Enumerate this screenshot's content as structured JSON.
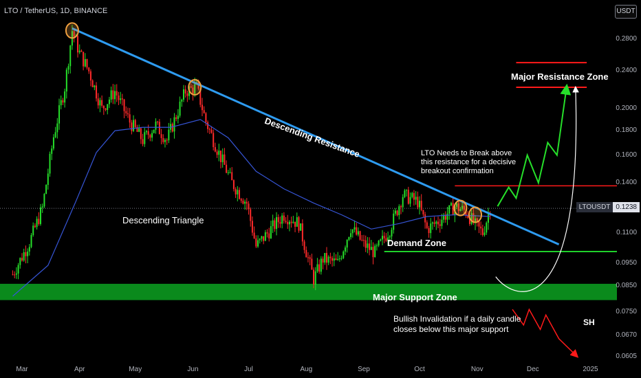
{
  "header": {
    "symbol_line": "LTO / TetherUS, 1D, BINANCE"
  },
  "quote_currency": "USDT",
  "ticker_tag": {
    "symbol": "LTOUSDT",
    "price": "0.1238"
  },
  "colors": {
    "bg": "#000000",
    "bull": "#26e02a",
    "bear": "#ff2a2a",
    "resistance_line": "#2e9bf0",
    "ma_line": "#3655d6",
    "support_zone": "#0a8a1c",
    "demand_line": "#1fd12b",
    "red_level": "#ff1a1a",
    "highlight_circle": "#f0a040"
  },
  "chart_data": {
    "type": "candlestick",
    "title": "LTO / TetherUS, 1D, BINANCE",
    "y_scale": "log",
    "ylim": [
      0.0605,
      0.33
    ],
    "y_ticks": [
      "0.2800",
      "0.2400",
      "0.2000",
      "0.1800",
      "0.1600",
      "0.1400",
      "0.1100",
      "0.0950",
      "0.0850",
      "0.0750",
      "0.0670",
      "0.0605"
    ],
    "x_ticks": [
      "Mar",
      "Apr",
      "May",
      "Jun",
      "Jul",
      "Aug",
      "Sep",
      "Oct",
      "Nov",
      "Dec",
      "2025"
    ],
    "last_price": 0.1238,
    "key_points": [
      {
        "date": "2024-02-25",
        "price": 0.09
      },
      {
        "date": "2024-03-05",
        "price": 0.105
      },
      {
        "date": "2024-03-12",
        "price": 0.124
      },
      {
        "date": "2024-03-18",
        "price": 0.175
      },
      {
        "date": "2024-03-24",
        "price": 0.222
      },
      {
        "date": "2024-03-28",
        "price": 0.292
      },
      {
        "date": "2024-04-01",
        "price": 0.262
      },
      {
        "date": "2024-04-06",
        "price": 0.24
      },
      {
        "date": "2024-04-13",
        "price": 0.2
      },
      {
        "date": "2024-04-20",
        "price": 0.218
      },
      {
        "date": "2024-04-28",
        "price": 0.188
      },
      {
        "date": "2024-05-05",
        "price": 0.172
      },
      {
        "date": "2024-05-12",
        "price": 0.185
      },
      {
        "date": "2024-05-18",
        "price": 0.172
      },
      {
        "date": "2024-05-28",
        "price": 0.218
      },
      {
        "date": "2024-06-03",
        "price": 0.222
      },
      {
        "date": "2024-06-08",
        "price": 0.188
      },
      {
        "date": "2024-06-14",
        "price": 0.165
      },
      {
        "date": "2024-06-22",
        "price": 0.14
      },
      {
        "date": "2024-06-30",
        "price": 0.127
      },
      {
        "date": "2024-07-05",
        "price": 0.103
      },
      {
        "date": "2024-07-13",
        "price": 0.112
      },
      {
        "date": "2024-07-20",
        "price": 0.12
      },
      {
        "date": "2024-07-28",
        "price": 0.115
      },
      {
        "date": "2024-08-05",
        "price": 0.088
      },
      {
        "date": "2024-08-10",
        "price": 0.097
      },
      {
        "date": "2024-08-18",
        "price": 0.095
      },
      {
        "date": "2024-08-25",
        "price": 0.113
      },
      {
        "date": "2024-09-01",
        "price": 0.104
      },
      {
        "date": "2024-09-07",
        "price": 0.1
      },
      {
        "date": "2024-09-15",
        "price": 0.112
      },
      {
        "date": "2024-09-22",
        "price": 0.132
      },
      {
        "date": "2024-09-30",
        "price": 0.128
      },
      {
        "date": "2024-10-05",
        "price": 0.112
      },
      {
        "date": "2024-10-12",
        "price": 0.117
      },
      {
        "date": "2024-10-20",
        "price": 0.125
      },
      {
        "date": "2024-10-26",
        "price": 0.122
      },
      {
        "date": "2024-10-31",
        "price": 0.114
      },
      {
        "date": "2024-11-04",
        "price": 0.11
      },
      {
        "date": "2024-11-08",
        "price": 0.1238
      }
    ],
    "moving_average": [
      {
        "date": "2024-02-25",
        "price": 0.081
      },
      {
        "date": "2024-03-15",
        "price": 0.094
      },
      {
        "date": "2024-03-30",
        "price": 0.128
      },
      {
        "date": "2024-04-10",
        "price": 0.162
      },
      {
        "date": "2024-04-20",
        "price": 0.18
      },
      {
        "date": "2024-05-05",
        "price": 0.183
      },
      {
        "date": "2024-05-20",
        "price": 0.183
      },
      {
        "date": "2024-06-05",
        "price": 0.19
      },
      {
        "date": "2024-06-20",
        "price": 0.174
      },
      {
        "date": "2024-07-05",
        "price": 0.148
      },
      {
        "date": "2024-07-20",
        "price": 0.136
      },
      {
        "date": "2024-08-05",
        "price": 0.127
      },
      {
        "date": "2024-08-20",
        "price": 0.12
      },
      {
        "date": "2024-09-05",
        "price": 0.112
      },
      {
        "date": "2024-09-20",
        "price": 0.115
      },
      {
        "date": "2024-10-05",
        "price": 0.119
      },
      {
        "date": "2024-10-20",
        "price": 0.12
      },
      {
        "date": "2024-11-08",
        "price": 0.119
      }
    ],
    "annotations": {
      "descending_resistance": {
        "label": "Descending Resistance",
        "start": {
          "date": "2024-03-28",
          "price": 0.295
        },
        "end": {
          "date": "2024-12-15",
          "price": 0.104
        }
      },
      "pattern_label": "Descending Triangle",
      "demand_zone": {
        "label": "Demand Zone",
        "price": 0.1005,
        "from": "2024-09-12",
        "to": "2025-01-10"
      },
      "major_support_zone": {
        "label": "Major Support Zone",
        "from_price": 0.0795,
        "to_price": 0.086
      },
      "resistance_level": {
        "price": 0.138,
        "from": "2024-10-20",
        "to": "2025-01-10"
      },
      "major_resistance_zone": {
        "label": "Major Resistance Zone",
        "upper": 0.25,
        "lower": 0.222,
        "from": "2024-11-22",
        "to": "2024-12-30"
      },
      "breakout_note": "LTO Needs to Break above\nthis resistance for a decisive\nbreakout confirmation",
      "invalidation_note": "Bullish Invalidation if a daily candle\ncloses below this major support",
      "sh_label": "SH",
      "touch_points": [
        {
          "date": "2024-03-28",
          "price": 0.292
        },
        {
          "date": "2024-06-02",
          "price": 0.222
        },
        {
          "date": "2024-10-23",
          "price": 0.124
        },
        {
          "date": "2024-10-31",
          "price": 0.12
        }
      ],
      "bullish_projection": [
        {
          "date": "2024-11-12",
          "price": 0.125
        },
        {
          "date": "2024-11-18",
          "price": 0.137
        },
        {
          "date": "2024-11-22",
          "price": 0.13
        },
        {
          "date": "2024-11-28",
          "price": 0.16
        },
        {
          "date": "2024-12-04",
          "price": 0.14
        },
        {
          "date": "2024-12-09",
          "price": 0.17
        },
        {
          "date": "2024-12-14",
          "price": 0.16
        },
        {
          "date": "2024-12-19",
          "price": 0.22
        }
      ],
      "bearish_projection": [
        {
          "date": "2024-11-20",
          "price": 0.076
        },
        {
          "date": "2024-11-26",
          "price": 0.0705
        },
        {
          "date": "2024-11-29",
          "price": 0.076
        },
        {
          "date": "2024-12-05",
          "price": 0.069
        },
        {
          "date": "2024-12-08",
          "price": 0.074
        },
        {
          "date": "2024-12-15",
          "price": 0.066
        },
        {
          "date": "2024-12-24",
          "price": 0.061
        }
      ],
      "curve_arrow": {
        "start": {
          "date": "2024-11-11",
          "price": 0.089
        },
        "end": {
          "date": "2024-12-24",
          "price": 0.22
        }
      }
    }
  }
}
